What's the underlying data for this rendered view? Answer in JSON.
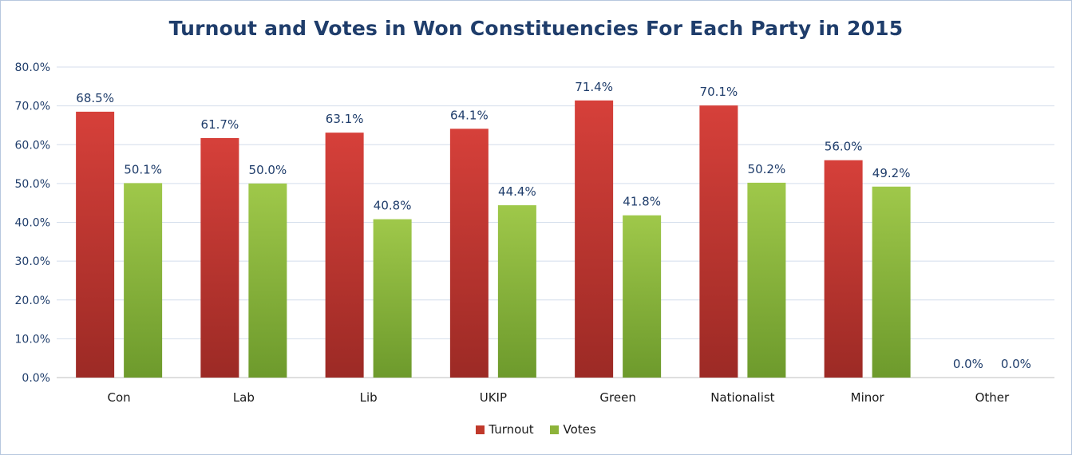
{
  "chart_data": {
    "type": "bar",
    "title": "Turnout and Votes in Won Constituencies For Each Party in 2015",
    "categories": [
      "Con",
      "Lab",
      "Lib",
      "UKIP",
      "Green",
      "Nationalist",
      "Minor",
      "Other"
    ],
    "series": [
      {
        "name": "Turnout",
        "values": [
          68.5,
          61.7,
          63.1,
          64.1,
          71.4,
          70.1,
          56.0,
          0.0
        ],
        "labels": [
          "68.5%",
          "61.7%",
          "63.1%",
          "64.1%",
          "71.4%",
          "70.1%",
          "56.0%",
          "0.0%"
        ],
        "color": "#c0392b"
      },
      {
        "name": "Votes",
        "values": [
          50.1,
          50.0,
          40.8,
          44.4,
          41.8,
          50.2,
          49.2,
          0.0
        ],
        "labels": [
          "50.1%",
          "50.0%",
          "40.8%",
          "44.4%",
          "41.8%",
          "50.2%",
          "49.2%",
          "0.0%"
        ],
        "color": "#8db33a"
      }
    ],
    "ylim": [
      0,
      80
    ],
    "yticks": [
      "0.0%",
      "10.0%",
      "20.0%",
      "30.0%",
      "40.0%",
      "50.0%",
      "60.0%",
      "70.0%",
      "80.0%"
    ],
    "grid": true,
    "legend": "bottom"
  }
}
